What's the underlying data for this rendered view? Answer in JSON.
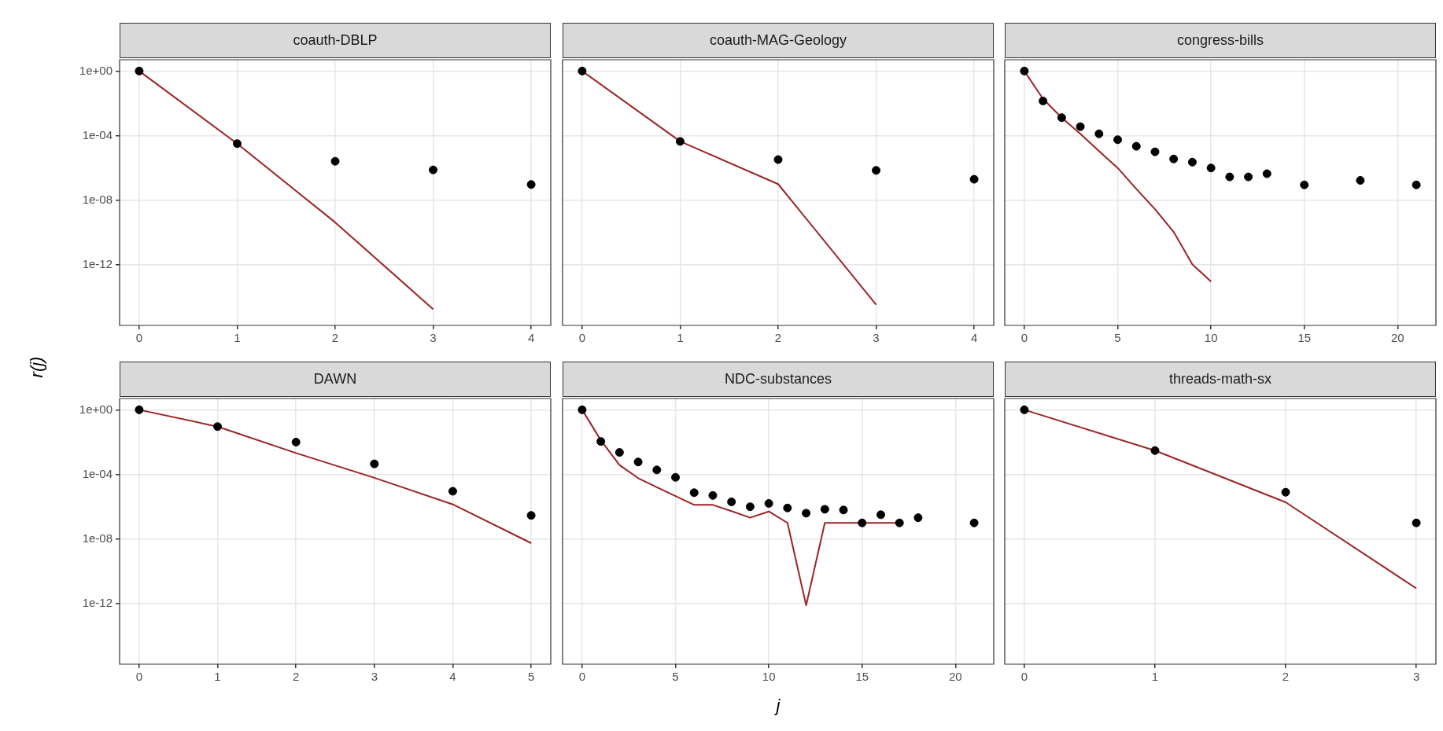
{
  "chart_data": [
    {
      "type": "scatter",
      "title": "coauth-DBLP",
      "ylabel": "r(j)",
      "log": "y",
      "grid": true,
      "xlim": [
        -0.2,
        4.2
      ],
      "xticks": [
        0,
        1,
        2,
        3,
        4
      ],
      "ylim": [
        1.8e-16,
        5
      ],
      "yticks": [
        {
          "value": 1,
          "label": "1e+00"
        },
        {
          "value": 0.0001,
          "label": "1e-04"
        },
        {
          "value": 1e-08,
          "label": "1e-08"
        },
        {
          "value": 1e-12,
          "label": "1e-12"
        }
      ],
      "series": [
        {
          "type": "scatter",
          "marker": "circle",
          "color": "#000000",
          "x": [
            0,
            1,
            2,
            3,
            4
          ],
          "values": [
            1,
            3.2e-05,
            2.6e-06,
            7.6e-07,
            9.5e-08
          ]
        },
        {
          "type": "line",
          "marker": "none",
          "color": "#9b2423",
          "x": [
            0,
            1,
            2,
            3
          ],
          "values": [
            1,
            3.2e-05,
            4.3e-10,
            1.8e-15
          ]
        }
      ]
    },
    {
      "type": "scatter",
      "title": "coauth-MAG-Geology",
      "log": "y",
      "grid": true,
      "tick_labels": "x",
      "xlim": [
        -0.2,
        4.2
      ],
      "xticks": [
        0,
        1,
        2,
        3,
        4
      ],
      "ylim": [
        1.8e-16,
        5
      ],
      "series": [
        {
          "type": "scatter",
          "marker": "circle",
          "color": "#000000",
          "x": [
            0,
            1,
            2,
            3,
            4
          ],
          "values": [
            1,
            4.4e-05,
            3.3e-06,
            7.1e-07,
            2e-07
          ]
        },
        {
          "type": "line",
          "marker": "none",
          "color": "#9b2423",
          "x": [
            0,
            1,
            2,
            3
          ],
          "values": [
            1,
            4.4e-05,
            1e-07,
            3.5e-15
          ]
        }
      ]
    },
    {
      "type": "scatter",
      "title": "congress-bills",
      "log": "y",
      "grid": true,
      "tick_labels": "x",
      "xlim": [
        -1.05,
        22.05
      ],
      "xticks": [
        0,
        5,
        10,
        15,
        20
      ],
      "ylim": [
        1.8e-16,
        5
      ],
      "series": [
        {
          "type": "scatter",
          "marker": "circle",
          "color": "#000000",
          "x": [
            0,
            1,
            2,
            3,
            4,
            5,
            6,
            7,
            8,
            9,
            10,
            11,
            12,
            13,
            15,
            18,
            21
          ],
          "values": [
            1,
            0.014,
            0.0013,
            0.00036,
            0.00013,
            5.6e-05,
            2.2e-05,
            1e-05,
            3.6e-06,
            2.3e-06,
            1e-06,
            2.8e-07,
            2.8e-07,
            4.4e-07,
            9e-08,
            1.7e-07,
            9e-08
          ]
        },
        {
          "type": "line",
          "marker": "none",
          "color": "#9b2423",
          "x": [
            0,
            1,
            2,
            3,
            4,
            5,
            6,
            7,
            8,
            9,
            10
          ],
          "values": [
            1,
            0.019,
            0.0013,
            0.00013,
            1.1e-05,
            1e-06,
            5e-08,
            2.8e-09,
            1.1e-10,
            1.1e-12,
            9.3e-14
          ]
        }
      ]
    },
    {
      "type": "scatter",
      "title": "DAWN",
      "log": "y",
      "grid": true,
      "xlim": [
        -0.25,
        5.25
      ],
      "xticks": [
        0,
        1,
        2,
        3,
        4,
        5
      ],
      "ylim": [
        1.8e-16,
        5
      ],
      "yticks": [
        {
          "value": 1,
          "label": "1e+00"
        },
        {
          "value": 0.0001,
          "label": "1e-04"
        },
        {
          "value": 1e-08,
          "label": "1e-08"
        },
        {
          "value": 1e-12,
          "label": "1e-12"
        }
      ],
      "series": [
        {
          "type": "scatter",
          "marker": "circle",
          "color": "#000000",
          "x": [
            0,
            1,
            2,
            3,
            4,
            5
          ],
          "values": [
            1,
            0.091,
            0.01,
            0.00045,
            9.1e-06,
            2.9e-07
          ]
        },
        {
          "type": "line",
          "marker": "none",
          "color": "#9b2423",
          "x": [
            0,
            1,
            2,
            3,
            4,
            5
          ],
          "values": [
            1,
            0.091,
            0.0021,
            6.2e-05,
            1.4e-06,
            5.6e-09
          ]
        }
      ]
    },
    {
      "type": "scatter",
      "title": "NDC-substances",
      "xlabel": "j",
      "log": "y",
      "grid": true,
      "tick_labels": "x",
      "xlim": [
        -1.05,
        22.05
      ],
      "xticks": [
        0,
        5,
        10,
        15,
        20
      ],
      "ylim": [
        1.8e-16,
        5
      ],
      "series": [
        {
          "type": "scatter",
          "marker": "circle",
          "color": "#000000",
          "x": [
            0,
            1,
            2,
            3,
            4,
            5,
            6,
            7,
            8,
            9,
            10,
            11,
            12,
            13,
            14,
            15,
            16,
            17,
            18,
            21
          ],
          "values": [
            1,
            0.011,
            0.0023,
            0.00059,
            0.00019,
            6.6e-05,
            7.4e-06,
            5e-06,
            2e-06,
            1e-06,
            1.6e-06,
            8.4e-07,
            4e-07,
            7e-07,
            6.3e-07,
            1e-07,
            3.2e-07,
            1e-07,
            2.1e-07,
            1e-07
          ]
        },
        {
          "type": "line",
          "marker": "none",
          "color": "#9b2423",
          "x": [
            0,
            1,
            2,
            3,
            4,
            5,
            6,
            7,
            8,
            9,
            10,
            11,
            12,
            13,
            14,
            15,
            16,
            17
          ],
          "values": [
            1,
            0.013,
            0.00038,
            5.9e-05,
            1.6e-05,
            4.6e-06,
            1.3e-06,
            1.3e-06,
            5.4e-07,
            2.1e-07,
            5.1e-07,
            1e-07,
            7.9e-13,
            1e-07,
            1e-07,
            1e-07,
            1e-07,
            1e-07
          ]
        }
      ]
    },
    {
      "type": "scatter",
      "title": "threads-math-sx",
      "log": "y",
      "grid": true,
      "tick_labels": "x",
      "xlim": [
        -0.15,
        3.15
      ],
      "xticks": [
        0,
        1,
        2,
        3
      ],
      "ylim": [
        1.8e-16,
        5
      ],
      "series": [
        {
          "type": "scatter",
          "marker": "circle",
          "color": "#000000",
          "x": [
            0,
            1,
            2,
            3
          ],
          "values": [
            1,
            0.003,
            7.9e-06,
            1e-07
          ]
        },
        {
          "type": "line",
          "marker": "none",
          "color": "#9b2423",
          "x": [
            0,
            1,
            2,
            3
          ],
          "values": [
            1,
            0.003,
            1.9e-06,
            8.9e-12
          ]
        }
      ]
    }
  ]
}
